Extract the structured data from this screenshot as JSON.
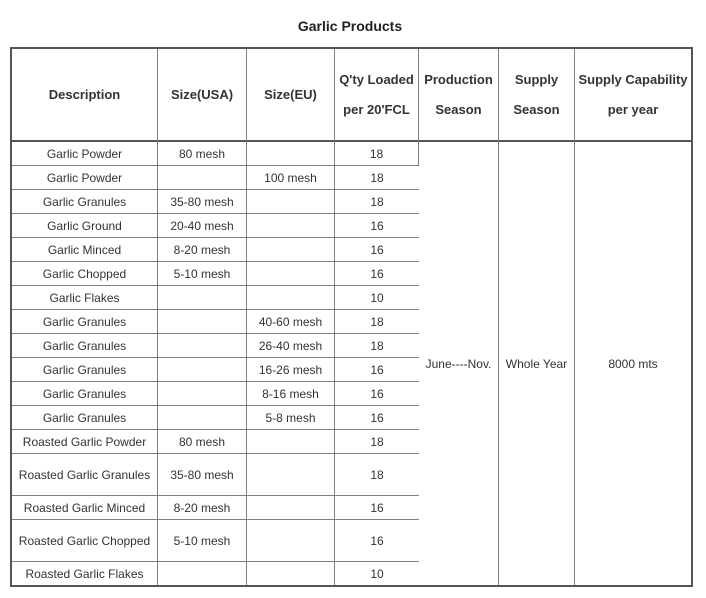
{
  "title": "Garlic Products",
  "headers": {
    "description": "Description",
    "size_usa": "Size(USA)",
    "size_eu": "Size(EU)",
    "qty_loaded": "Q'ty Loaded per 20'FCL",
    "production_season": "Production Season",
    "supply_season": "Supply Season",
    "supply_capability": "Supply Capability per year"
  },
  "rows": [
    {
      "description": "Garlic Powder",
      "size_usa": "80 mesh",
      "size_eu": "",
      "qty": "18"
    },
    {
      "description": "Garlic Powder",
      "size_usa": "",
      "size_eu": "100 mesh",
      "qty": "18"
    },
    {
      "description": "Garlic Granules",
      "size_usa": "35-80 mesh",
      "size_eu": "",
      "qty": "18"
    },
    {
      "description": "Garlic Ground",
      "size_usa": "20-40 mesh",
      "size_eu": "",
      "qty": "16"
    },
    {
      "description": "Garlic Minced",
      "size_usa": "8-20 mesh",
      "size_eu": "",
      "qty": "16"
    },
    {
      "description": "Garlic Chopped",
      "size_usa": "5-10 mesh",
      "size_eu": "",
      "qty": "16"
    },
    {
      "description": "Garlic Flakes",
      "size_usa": "",
      "size_eu": "",
      "qty": "10"
    },
    {
      "description": "Garlic Granules",
      "size_usa": "",
      "size_eu": "40-60 mesh",
      "qty": "18"
    },
    {
      "description": "Garlic Granules",
      "size_usa": "",
      "size_eu": "26-40 mesh",
      "qty": "18"
    },
    {
      "description": "Garlic Granules",
      "size_usa": "",
      "size_eu": "16-26 mesh",
      "qty": "16"
    },
    {
      "description": "Garlic Granules",
      "size_usa": "",
      "size_eu": "8-16 mesh",
      "qty": "16"
    },
    {
      "description": "Garlic Granules",
      "size_usa": "",
      "size_eu": "5-8 mesh",
      "qty": "16"
    },
    {
      "description": "Roasted Garlic Powder",
      "size_usa": "80 mesh",
      "size_eu": "",
      "qty": "18"
    },
    {
      "description": "Roasted Garlic Granules",
      "size_usa": "35-80 mesh",
      "size_eu": "",
      "qty": "18"
    },
    {
      "description": "Roasted Garlic Minced",
      "size_usa": "8-20 mesh",
      "size_eu": "",
      "qty": "16"
    },
    {
      "description": "Roasted Garlic Chopped",
      "size_usa": "5-10 mesh",
      "size_eu": "",
      "qty": "16"
    },
    {
      "description": "Roasted Garlic Flakes",
      "size_usa": "",
      "size_eu": "",
      "qty": "10"
    }
  ],
  "merged": {
    "production_season": "June----Nov.",
    "supply_season": "Whole Year",
    "supply_capability": "8000 mts"
  }
}
